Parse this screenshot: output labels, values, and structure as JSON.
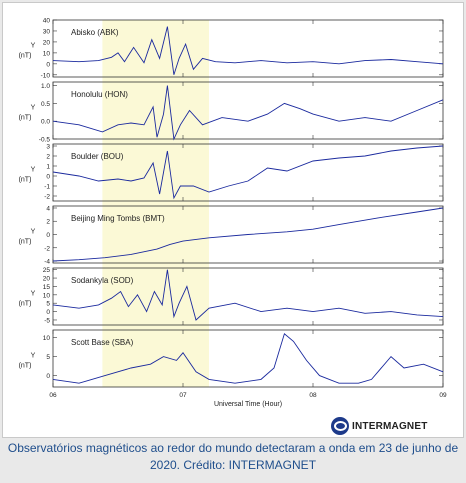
{
  "caption": "Observatórios magnéticos ao redor do mundo detectaram a onda em 23 de junho de 2020. Crédito: INTERMAGNET",
  "logo": {
    "name": "INTERMAGNET",
    "icon": "intermagnet-logo-icon",
    "color": "#1d3a8a"
  },
  "colors": {
    "trace": "#1b2a9e",
    "highlight": "#fbf9d6",
    "caption": "#1f4e8c"
  },
  "chart_data": {
    "type": "line",
    "xlabel": "Universal Time (Hour)",
    "x_ticks": [
      "06",
      "07",
      "08",
      "09"
    ],
    "xlim": [
      6,
      9
    ],
    "highlight_x": [
      6.38,
      7.2
    ],
    "ylabel_lines": [
      "Y",
      "(nT)"
    ],
    "panels": [
      {
        "name": "Abisko (ABK)",
        "ylim": [
          -12,
          40
        ],
        "yticks": [
          "40",
          "30",
          "20",
          "10",
          "0",
          "-10"
        ],
        "points": [
          [
            6.0,
            3
          ],
          [
            6.2,
            2
          ],
          [
            6.35,
            3
          ],
          [
            6.45,
            6
          ],
          [
            6.5,
            10
          ],
          [
            6.55,
            2
          ],
          [
            6.62,
            15
          ],
          [
            6.7,
            1
          ],
          [
            6.76,
            22
          ],
          [
            6.82,
            5
          ],
          [
            6.88,
            34
          ],
          [
            6.93,
            -10
          ],
          [
            6.97,
            5
          ],
          [
            7.02,
            18
          ],
          [
            7.08,
            -5
          ],
          [
            7.15,
            5
          ],
          [
            7.25,
            2
          ],
          [
            7.4,
            1
          ],
          [
            7.6,
            3
          ],
          [
            7.8,
            1
          ],
          [
            8.0,
            2
          ],
          [
            8.2,
            0
          ],
          [
            8.4,
            3
          ],
          [
            8.6,
            4
          ],
          [
            8.8,
            2
          ],
          [
            9.0,
            0
          ]
        ]
      },
      {
        "name": "Honolulu (HON)",
        "ylim": [
          -0.5,
          1.1
        ],
        "yticks": [
          "1.0",
          "0.5",
          "0.0",
          "-0.5"
        ],
        "points": [
          [
            6.0,
            0.0
          ],
          [
            6.2,
            -0.1
          ],
          [
            6.38,
            -0.3
          ],
          [
            6.5,
            -0.1
          ],
          [
            6.6,
            -0.05
          ],
          [
            6.7,
            -0.1
          ],
          [
            6.77,
            0.4
          ],
          [
            6.8,
            -0.45
          ],
          [
            6.85,
            0.2
          ],
          [
            6.88,
            1.0
          ],
          [
            6.93,
            -0.5
          ],
          [
            6.98,
            -0.1
          ],
          [
            7.05,
            0.3
          ],
          [
            7.15,
            -0.1
          ],
          [
            7.3,
            0.1
          ],
          [
            7.5,
            0.0
          ],
          [
            7.65,
            0.2
          ],
          [
            7.78,
            0.5
          ],
          [
            7.9,
            0.35
          ],
          [
            8.0,
            0.2
          ],
          [
            8.2,
            0.0
          ],
          [
            8.4,
            0.1
          ],
          [
            8.6,
            0.0
          ],
          [
            8.8,
            0.3
          ],
          [
            9.0,
            0.6
          ]
        ]
      },
      {
        "name": "Boulder (BOU)",
        "ylim": [
          -2.5,
          3.2
        ],
        "yticks": [
          "3",
          "2",
          "1",
          "0",
          "-1",
          "-2"
        ],
        "points": [
          [
            6.0,
            0.4
          ],
          [
            6.2,
            0.0
          ],
          [
            6.35,
            -0.5
          ],
          [
            6.5,
            -0.3
          ],
          [
            6.6,
            -0.5
          ],
          [
            6.7,
            -0.2
          ],
          [
            6.77,
            1.3
          ],
          [
            6.82,
            -1.8
          ],
          [
            6.88,
            2.5
          ],
          [
            6.93,
            -2.2
          ],
          [
            6.98,
            -1.0
          ],
          [
            7.08,
            -1.0
          ],
          [
            7.2,
            -1.6
          ],
          [
            7.35,
            -1.0
          ],
          [
            7.5,
            -0.5
          ],
          [
            7.65,
            0.8
          ],
          [
            7.8,
            0.5
          ],
          [
            8.0,
            1.5
          ],
          [
            8.2,
            1.8
          ],
          [
            8.4,
            2.0
          ],
          [
            8.6,
            2.5
          ],
          [
            8.8,
            2.8
          ],
          [
            9.0,
            3.0
          ]
        ]
      },
      {
        "name": "Beijing Ming Tombs (BMT)",
        "ylim": [
          -4.3,
          4.3
        ],
        "yticks": [
          "4",
          "2",
          "0",
          "-2",
          "-4"
        ],
        "points": [
          [
            6.0,
            -4.0
          ],
          [
            6.2,
            -3.8
          ],
          [
            6.4,
            -3.5
          ],
          [
            6.6,
            -3.0
          ],
          [
            6.8,
            -2.2
          ],
          [
            6.9,
            -1.5
          ],
          [
            7.0,
            -1.0
          ],
          [
            7.2,
            -0.5
          ],
          [
            7.5,
            0.0
          ],
          [
            7.8,
            0.4
          ],
          [
            8.0,
            0.8
          ],
          [
            8.2,
            1.5
          ],
          [
            8.5,
            2.5
          ],
          [
            8.8,
            3.4
          ],
          [
            9.0,
            4.0
          ]
        ]
      },
      {
        "name": "Sodankyla (SOD)",
        "ylim": [
          -8,
          26
        ],
        "yticks": [
          "25",
          "20",
          "15",
          "10",
          "5",
          "0",
          "-5"
        ],
        "points": [
          [
            6.0,
            4
          ],
          [
            6.2,
            2
          ],
          [
            6.35,
            4
          ],
          [
            6.45,
            8
          ],
          [
            6.52,
            12
          ],
          [
            6.58,
            3
          ],
          [
            6.65,
            10
          ],
          [
            6.72,
            0
          ],
          [
            6.78,
            12
          ],
          [
            6.84,
            4
          ],
          [
            6.88,
            25
          ],
          [
            6.93,
            -3
          ],
          [
            6.97,
            5
          ],
          [
            7.03,
            15
          ],
          [
            7.1,
            -5
          ],
          [
            7.2,
            2
          ],
          [
            7.4,
            5
          ],
          [
            7.6,
            0
          ],
          [
            7.8,
            2
          ],
          [
            8.0,
            0
          ],
          [
            8.2,
            2
          ],
          [
            8.4,
            -1
          ],
          [
            8.6,
            0
          ],
          [
            8.8,
            -2
          ],
          [
            9.0,
            -3
          ]
        ]
      },
      {
        "name": "Scott Base (SBA)",
        "ylim": [
          -3,
          12
        ],
        "yticks": [
          "10",
          "5",
          "0"
        ],
        "points": [
          [
            6.0,
            -1
          ],
          [
            6.2,
            -2
          ],
          [
            6.4,
            0
          ],
          [
            6.6,
            2
          ],
          [
            6.75,
            3
          ],
          [
            6.85,
            5
          ],
          [
            6.95,
            4
          ],
          [
            7.0,
            6
          ],
          [
            7.1,
            1
          ],
          [
            7.2,
            -1
          ],
          [
            7.4,
            -2
          ],
          [
            7.6,
            -1
          ],
          [
            7.7,
            2
          ],
          [
            7.78,
            11
          ],
          [
            7.85,
            9
          ],
          [
            7.95,
            4
          ],
          [
            8.05,
            0
          ],
          [
            8.2,
            -2
          ],
          [
            8.35,
            -2
          ],
          [
            8.45,
            -1
          ],
          [
            8.6,
            5
          ],
          [
            8.7,
            2
          ],
          [
            8.85,
            3
          ],
          [
            9.0,
            1
          ]
        ]
      }
    ]
  }
}
